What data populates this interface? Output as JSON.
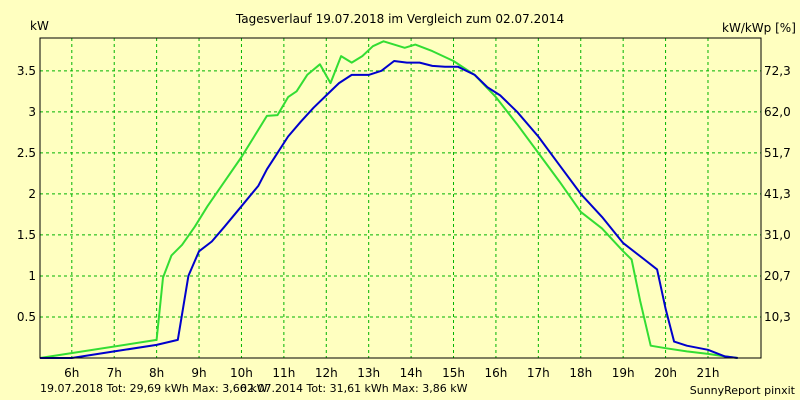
{
  "chart_data": {
    "type": "line",
    "title": "Tagesverlauf 19.07.2018 im Vergleich zum 02.07.2014",
    "ylabel_left": "kW",
    "ylabel_right": "kW/kWp [%]",
    "x_unit": "hour",
    "xlim": [
      5.25,
      22.25
    ],
    "ylim": [
      0,
      3.9
    ],
    "x_ticks": [
      {
        "x": 6,
        "label": "6h"
      },
      {
        "x": 7,
        "label": "7h"
      },
      {
        "x": 8,
        "label": "8h"
      },
      {
        "x": 9,
        "label": "9h"
      },
      {
        "x": 10,
        "label": "10h"
      },
      {
        "x": 11,
        "label": "11h"
      },
      {
        "x": 12,
        "label": "12h"
      },
      {
        "x": 13,
        "label": "13h"
      },
      {
        "x": 14,
        "label": "14h"
      },
      {
        "x": 15,
        "label": "15h"
      },
      {
        "x": 16,
        "label": "16h"
      },
      {
        "x": 17,
        "label": "17h"
      },
      {
        "x": 18,
        "label": "18h"
      },
      {
        "x": 19,
        "label": "19h"
      },
      {
        "x": 20,
        "label": "20h"
      },
      {
        "x": 21,
        "label": "21h"
      }
    ],
    "y_ticks_left": [
      {
        "y": 0.5,
        "label": "0.5"
      },
      {
        "y": 1,
        "label": "1"
      },
      {
        "y": 1.5,
        "label": "1.5"
      },
      {
        "y": 2,
        "label": "2"
      },
      {
        "y": 2.5,
        "label": "2.5"
      },
      {
        "y": 3,
        "label": "3"
      },
      {
        "y": 3.5,
        "label": "3.5"
      }
    ],
    "y_ticks_right": [
      {
        "y": 0.5,
        "label": "10,3"
      },
      {
        "y": 1,
        "label": "20,7"
      },
      {
        "y": 1.5,
        "label": "31,0"
      },
      {
        "y": 2,
        "label": "41,3"
      },
      {
        "y": 2.5,
        "label": "51,7"
      },
      {
        "y": 3,
        "label": "62,0"
      },
      {
        "y": 3.5,
        "label": "72,3"
      }
    ],
    "grid": true,
    "series": [
      {
        "name": "02.07.2014",
        "color": "#33dd33",
        "points": [
          [
            5.25,
            0.0
          ],
          [
            8.0,
            0.22
          ],
          [
            8.15,
            0.98
          ],
          [
            8.35,
            1.25
          ],
          [
            8.6,
            1.38
          ],
          [
            8.9,
            1.6
          ],
          [
            9.2,
            1.85
          ],
          [
            9.6,
            2.15
          ],
          [
            10.0,
            2.45
          ],
          [
            10.3,
            2.7
          ],
          [
            10.6,
            2.95
          ],
          [
            10.85,
            2.96
          ],
          [
            11.1,
            3.18
          ],
          [
            11.3,
            3.25
          ],
          [
            11.55,
            3.45
          ],
          [
            11.85,
            3.58
          ],
          [
            12.1,
            3.35
          ],
          [
            12.35,
            3.68
          ],
          [
            12.6,
            3.6
          ],
          [
            12.85,
            3.68
          ],
          [
            13.1,
            3.8
          ],
          [
            13.35,
            3.86
          ],
          [
            13.6,
            3.82
          ],
          [
            13.85,
            3.78
          ],
          [
            14.1,
            3.82
          ],
          [
            14.5,
            3.74
          ],
          [
            15.0,
            3.62
          ],
          [
            15.5,
            3.45
          ],
          [
            16.0,
            3.18
          ],
          [
            16.5,
            2.85
          ],
          [
            17.0,
            2.5
          ],
          [
            17.5,
            2.15
          ],
          [
            18.0,
            1.78
          ],
          [
            18.5,
            1.58
          ],
          [
            19.0,
            1.3
          ],
          [
            19.2,
            1.2
          ],
          [
            19.4,
            0.7
          ],
          [
            19.65,
            0.15
          ],
          [
            20.0,
            0.12
          ],
          [
            20.5,
            0.08
          ],
          [
            21.0,
            0.05
          ],
          [
            21.4,
            0.02
          ],
          [
            21.7,
            0.0
          ]
        ]
      },
      {
        "name": "19.07.2018",
        "color": "#0000cc",
        "points": [
          [
            5.25,
            0.0
          ],
          [
            6.0,
            0.0
          ],
          [
            7.0,
            0.08
          ],
          [
            8.0,
            0.16
          ],
          [
            8.5,
            0.22
          ],
          [
            8.75,
            1.0
          ],
          [
            9.0,
            1.3
          ],
          [
            9.3,
            1.42
          ],
          [
            9.6,
            1.6
          ],
          [
            10.0,
            1.85
          ],
          [
            10.4,
            2.1
          ],
          [
            10.6,
            2.3
          ],
          [
            10.85,
            2.5
          ],
          [
            11.1,
            2.7
          ],
          [
            11.4,
            2.88
          ],
          [
            11.7,
            3.05
          ],
          [
            12.0,
            3.2
          ],
          [
            12.3,
            3.35
          ],
          [
            12.6,
            3.45
          ],
          [
            13.0,
            3.45
          ],
          [
            13.3,
            3.5
          ],
          [
            13.6,
            3.62
          ],
          [
            13.9,
            3.6
          ],
          [
            14.2,
            3.6
          ],
          [
            14.5,
            3.56
          ],
          [
            14.8,
            3.55
          ],
          [
            15.1,
            3.55
          ],
          [
            15.5,
            3.45
          ],
          [
            15.8,
            3.3
          ],
          [
            16.1,
            3.2
          ],
          [
            16.5,
            3.0
          ],
          [
            17.0,
            2.7
          ],
          [
            17.5,
            2.35
          ],
          [
            18.0,
            2.0
          ],
          [
            18.5,
            1.72
          ],
          [
            19.0,
            1.4
          ],
          [
            19.5,
            1.2
          ],
          [
            19.8,
            1.08
          ],
          [
            20.0,
            0.6
          ],
          [
            20.2,
            0.2
          ],
          [
            20.5,
            0.15
          ],
          [
            21.0,
            0.1
          ],
          [
            21.4,
            0.02
          ],
          [
            21.7,
            0.0
          ]
        ]
      }
    ]
  },
  "footer": {
    "summary_2018": "19.07.2018 Tot: 29,69 kWh Max: 3,66 kW",
    "summary_2014": "02.07.2014 Tot: 31,61 kWh Max: 3,86 kW",
    "credit": "SunnyReport pinxit",
    "color_2018": "#0000cc",
    "color_2014": "#33dd33"
  }
}
